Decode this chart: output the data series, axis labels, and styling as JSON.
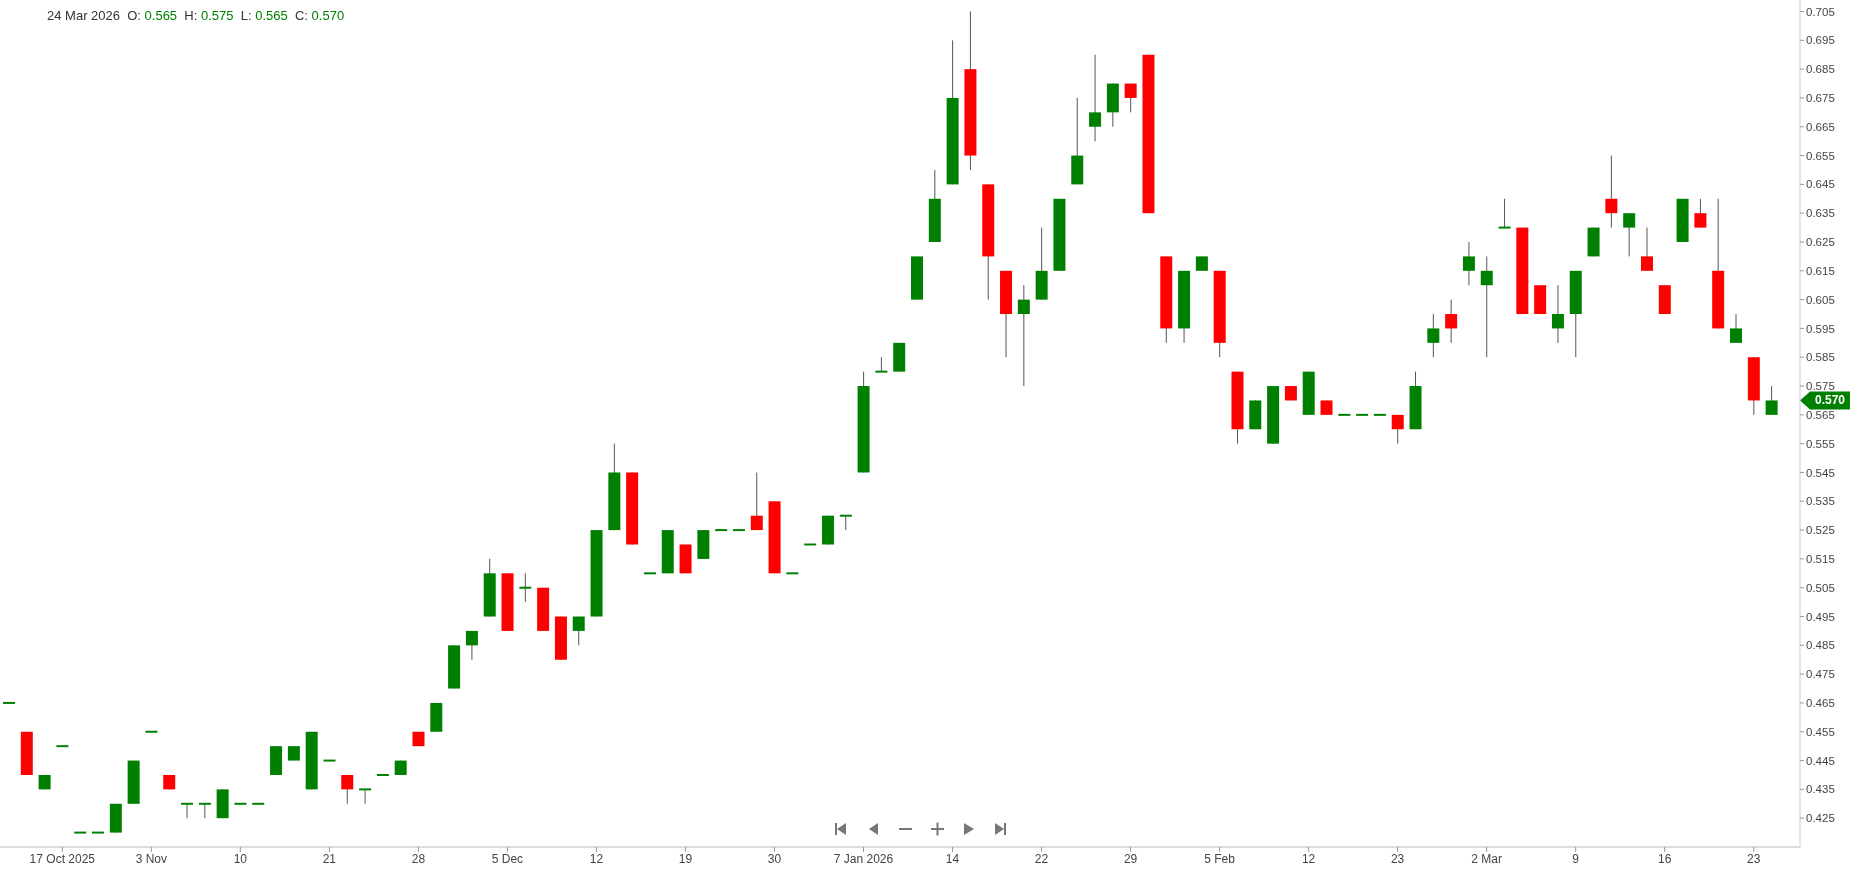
{
  "chart_data": {
    "type": "candlestick",
    "title": "24 Mar 2026  O: 0.565  H: 0.575  L: 0.565  C: 0.570",
    "categories": [
      null,
      null,
      null,
      "17 Oct 2025",
      null,
      null,
      null,
      null,
      "3 Nov",
      null,
      null,
      null,
      null,
      "10",
      null,
      null,
      null,
      null,
      "21",
      null,
      null,
      null,
      null,
      "28",
      null,
      null,
      null,
      null,
      "5 Dec",
      null,
      null,
      null,
      null,
      "12",
      null,
      null,
      null,
      null,
      "19",
      null,
      null,
      null,
      null,
      "30",
      null,
      null,
      null,
      null,
      "7 Jan 2026",
      null,
      null,
      null,
      null,
      "14",
      null,
      null,
      null,
      null,
      "22",
      null,
      null,
      null,
      null,
      "29",
      null,
      null,
      null,
      null,
      "5 Feb",
      null,
      null,
      null,
      null,
      "12",
      null,
      null,
      null,
      null,
      "23",
      null,
      null,
      null,
      null,
      "2 Mar",
      null,
      null,
      null,
      null,
      "9",
      null,
      null,
      null,
      null,
      "16",
      null,
      null,
      null,
      null,
      "23",
      null
    ],
    "ohlc": [
      [
        0.465,
        0.465,
        0.465,
        0.465
      ],
      [
        0.455,
        0.455,
        0.44,
        0.44
      ],
      [
        0.435,
        0.44,
        0.435,
        0.44
      ],
      [
        0.45,
        0.45,
        0.45,
        0.45
      ],
      [
        0.42,
        0.42,
        0.42,
        0.42
      ],
      [
        0.42,
        0.42,
        0.42,
        0.42
      ],
      [
        0.42,
        0.43,
        0.42,
        0.43
      ],
      [
        0.43,
        0.445,
        0.43,
        0.445
      ],
      [
        0.455,
        0.455,
        0.455,
        0.455
      ],
      [
        0.44,
        0.44,
        0.435,
        0.435
      ],
      [
        0.43,
        0.43,
        0.425,
        0.43
      ],
      [
        0.43,
        0.43,
        0.425,
        0.43
      ],
      [
        0.425,
        0.435,
        0.425,
        0.435
      ],
      [
        0.43,
        0.43,
        0.43,
        0.43
      ],
      [
        0.43,
        0.43,
        0.43,
        0.43
      ],
      [
        0.44,
        0.45,
        0.44,
        0.45
      ],
      [
        0.445,
        0.45,
        0.445,
        0.45
      ],
      [
        0.435,
        0.455,
        0.435,
        0.455
      ],
      [
        0.445,
        0.445,
        0.445,
        0.445
      ],
      [
        0.44,
        0.44,
        0.43,
        0.435
      ],
      [
        0.435,
        0.435,
        0.43,
        0.435
      ],
      [
        0.44,
        0.44,
        0.44,
        0.44
      ],
      [
        0.44,
        0.445,
        0.44,
        0.445
      ],
      [
        0.455,
        0.455,
        0.45,
        0.45
      ],
      [
        0.455,
        0.465,
        0.455,
        0.465
      ],
      [
        0.47,
        0.485,
        0.47,
        0.485
      ],
      [
        0.485,
        0.49,
        0.48,
        0.49
      ],
      [
        0.495,
        0.515,
        0.495,
        0.51
      ],
      [
        0.51,
        0.51,
        0.49,
        0.49
      ],
      [
        0.505,
        0.51,
        0.5,
        0.505
      ],
      [
        0.505,
        0.505,
        0.49,
        0.49
      ],
      [
        0.495,
        0.495,
        0.48,
        0.48
      ],
      [
        0.49,
        0.495,
        0.485,
        0.495
      ],
      [
        0.495,
        0.525,
        0.495,
        0.525
      ],
      [
        0.525,
        0.555,
        0.525,
        0.545
      ],
      [
        0.545,
        0.545,
        0.52,
        0.52
      ],
      [
        0.51,
        0.51,
        0.51,
        0.51
      ],
      [
        0.51,
        0.525,
        0.51,
        0.525
      ],
      [
        0.52,
        0.52,
        0.51,
        0.51
      ],
      [
        0.515,
        0.525,
        0.515,
        0.525
      ],
      [
        0.525,
        0.525,
        0.525,
        0.525
      ],
      [
        0.525,
        0.525,
        0.525,
        0.525
      ],
      [
        0.53,
        0.545,
        0.525,
        0.525
      ],
      [
        0.535,
        0.535,
        0.51,
        0.51
      ],
      [
        0.51,
        0.51,
        0.51,
        0.51
      ],
      [
        0.52,
        0.52,
        0.52,
        0.52
      ],
      [
        0.52,
        0.53,
        0.52,
        0.53
      ],
      [
        0.53,
        0.53,
        0.525,
        0.53
      ],
      [
        0.545,
        0.58,
        0.545,
        0.575
      ],
      [
        0.58,
        0.585,
        0.58,
        0.58
      ],
      [
        0.58,
        0.59,
        0.58,
        0.59
      ],
      [
        0.605,
        0.62,
        0.605,
        0.62
      ],
      [
        0.625,
        0.65,
        0.625,
        0.64
      ],
      [
        0.645,
        0.695,
        0.645,
        0.675
      ],
      [
        0.685,
        0.705,
        0.65,
        0.655
      ],
      [
        0.645,
        0.645,
        0.605,
        0.62
      ],
      [
        0.615,
        0.615,
        0.585,
        0.6
      ],
      [
        0.6,
        0.61,
        0.575,
        0.605
      ],
      [
        0.605,
        0.63,
        0.605,
        0.615
      ],
      [
        0.615,
        0.64,
        0.615,
        0.64
      ],
      [
        0.645,
        0.675,
        0.645,
        0.655
      ],
      [
        0.665,
        0.69,
        0.66,
        0.67
      ],
      [
        0.67,
        0.68,
        0.665,
        0.68
      ],
      [
        0.68,
        0.68,
        0.67,
        0.675
      ],
      [
        0.69,
        0.69,
        0.635,
        0.635
      ],
      [
        0.62,
        0.62,
        0.59,
        0.595
      ],
      [
        0.595,
        0.615,
        0.59,
        0.615
      ],
      [
        0.615,
        0.62,
        0.615,
        0.62
      ],
      [
        0.615,
        0.615,
        0.585,
        0.59
      ],
      [
        0.58,
        0.58,
        0.555,
        0.56
      ],
      [
        0.56,
        0.57,
        0.56,
        0.57
      ],
      [
        0.555,
        0.575,
        0.555,
        0.575
      ],
      [
        0.575,
        0.575,
        0.57,
        0.57
      ],
      [
        0.565,
        0.58,
        0.565,
        0.58
      ],
      [
        0.57,
        0.57,
        0.565,
        0.565
      ],
      [
        0.565,
        0.565,
        0.565,
        0.565
      ],
      [
        0.565,
        0.565,
        0.565,
        0.565
      ],
      [
        0.565,
        0.565,
        0.565,
        0.565
      ],
      [
        0.565,
        0.565,
        0.555,
        0.56
      ],
      [
        0.56,
        0.58,
        0.56,
        0.575
      ],
      [
        0.59,
        0.6,
        0.585,
        0.595
      ],
      [
        0.6,
        0.605,
        0.59,
        0.595
      ],
      [
        0.615,
        0.625,
        0.61,
        0.62
      ],
      [
        0.61,
        0.62,
        0.585,
        0.615
      ],
      [
        0.63,
        0.64,
        0.63,
        0.63
      ],
      [
        0.63,
        0.63,
        0.6,
        0.6
      ],
      [
        0.61,
        0.61,
        0.6,
        0.6
      ],
      [
        0.595,
        0.61,
        0.59,
        0.6
      ],
      [
        0.6,
        0.615,
        0.585,
        0.615
      ],
      [
        0.62,
        0.63,
        0.62,
        0.63
      ],
      [
        0.64,
        0.655,
        0.63,
        0.635
      ],
      [
        0.63,
        0.635,
        0.62,
        0.635
      ],
      [
        0.62,
        0.63,
        0.615,
        0.615
      ],
      [
        0.61,
        0.61,
        0.6,
        0.6
      ],
      [
        0.625,
        0.64,
        0.625,
        0.64
      ],
      [
        0.635,
        0.64,
        0.63,
        0.63
      ],
      [
        0.615,
        0.64,
        0.595,
        0.595
      ],
      [
        0.59,
        0.6,
        0.59,
        0.595
      ],
      [
        0.585,
        0.585,
        0.565,
        0.57
      ],
      [
        0.565,
        0.575,
        0.565,
        0.57
      ]
    ],
    "colors": [
      "#008000",
      "#ff0000",
      "#008000",
      "#008000",
      "#008000",
      "#008000",
      "#008000",
      "#008000",
      "#008000",
      "#ff0000",
      "#008000",
      "#008000",
      "#008000",
      "#008000",
      "#008000",
      "#008000",
      "#008000",
      "#008000",
      "#008000",
      "#ff0000",
      "#008000",
      "#008000",
      "#008000",
      "#ff0000",
      "#008000",
      "#008000",
      "#008000",
      "#008000",
      "#ff0000",
      "#008000",
      "#ff0000",
      "#ff0000",
      "#008000",
      "#008000",
      "#008000",
      "#ff0000",
      "#008000",
      "#008000",
      "#ff0000",
      "#008000",
      "#008000",
      "#008000",
      "#ff0000",
      "#ff0000",
      "#008000",
      "#008000",
      "#008000",
      "#008000",
      "#008000",
      "#008000",
      "#008000",
      "#008000",
      "#008000",
      "#008000",
      "#ff0000",
      "#ff0000",
      "#ff0000",
      "#008000",
      "#008000",
      "#008000",
      "#008000",
      "#008000",
      "#008000",
      "#ff0000",
      "#ff0000",
      "#ff0000",
      "#008000",
      "#008000",
      "#ff0000",
      "#ff0000",
      "#008000",
      "#008000",
      "#ff0000",
      "#008000",
      "#ff0000",
      "#008000",
      "#008000",
      "#008000",
      "#ff0000",
      "#008000",
      "#008000",
      "#ff0000",
      "#008000",
      "#008000",
      "#008000",
      "#ff0000",
      "#ff0000",
      "#008000",
      "#008000",
      "#008000",
      "#ff0000",
      "#008000",
      "#ff0000",
      "#ff0000",
      "#008000",
      "#ff0000",
      "#ff0000",
      "#008000",
      "#ff0000",
      "#008000"
    ],
    "ylim": [
      0.415,
      0.709
    ],
    "yticks": [
      0.425,
      0.435,
      0.445,
      0.455,
      0.465,
      0.475,
      0.485,
      0.495,
      0.505,
      0.515,
      0.525,
      0.535,
      0.545,
      0.555,
      0.565,
      0.575,
      0.585,
      0.595,
      0.605,
      0.615,
      0.625,
      0.635,
      0.645,
      0.655,
      0.665,
      0.675,
      0.685,
      0.695,
      0.705
    ],
    "annotations": [
      "0.570"
    ]
  }
}
